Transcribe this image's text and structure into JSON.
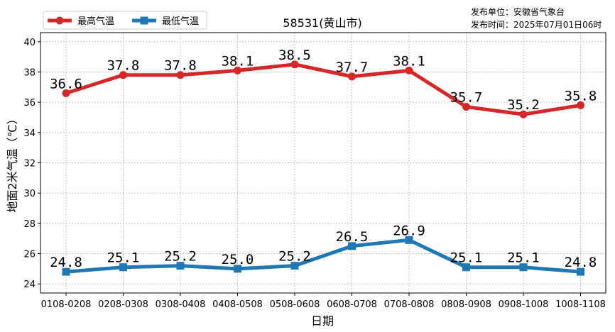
{
  "chart_data": {
    "type": "line",
    "title": "58531(黄山市)",
    "xlabel": "日期",
    "ylabel": "地面2米气温（℃）",
    "categories": [
      "0108-0208",
      "0208-0308",
      "0308-0408",
      "0408-0508",
      "0508-0608",
      "0608-0708",
      "0708-0808",
      "0808-0908",
      "0908-1008",
      "1008-1108"
    ],
    "ylim": [
      23.4,
      40.6
    ],
    "yticks": [
      24,
      26,
      28,
      30,
      32,
      34,
      36,
      38,
      40
    ],
    "grid": true,
    "legend_position": "top-left",
    "series": [
      {
        "name": "最高气温",
        "color": "#d62728",
        "marker": "circle",
        "values": [
          36.6,
          37.8,
          37.8,
          38.1,
          38.5,
          37.7,
          38.1,
          35.7,
          35.2,
          35.8
        ],
        "labels": [
          "36.6",
          "37.8",
          "37.8",
          "38.1",
          "38.5",
          "37.7",
          "38.1",
          "35.7",
          "35.2",
          "35.8"
        ]
      },
      {
        "name": "最低气温",
        "color": "#1f77b4",
        "marker": "square",
        "values": [
          24.8,
          25.1,
          25.2,
          25.0,
          25.2,
          26.5,
          26.9,
          25.1,
          25.1,
          24.8
        ],
        "labels": [
          "24.8",
          "25.1",
          "25.2",
          "25.0",
          "25.2",
          "26.5",
          "26.9",
          "25.1",
          "25.1",
          "24.8"
        ]
      }
    ]
  },
  "publisher": {
    "unit": "发布单位：安徽省气象台",
    "time": "发布时间：2025年07月01日06时"
  }
}
